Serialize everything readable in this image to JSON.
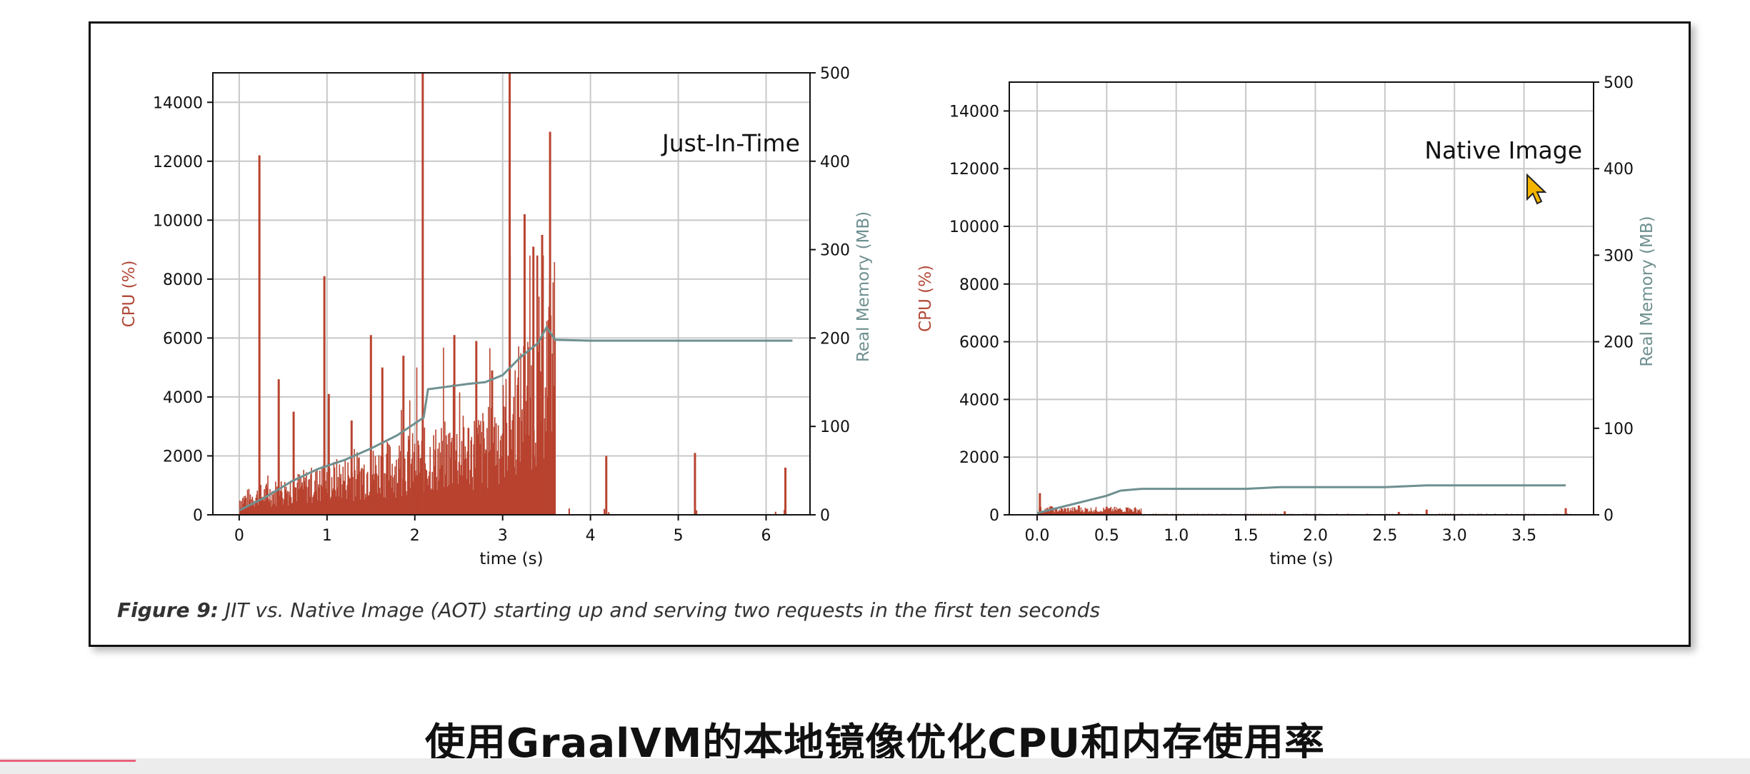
{
  "chart_data": [
    {
      "type": "bar",
      "title": "Just-In-Time",
      "xlabel": "time (s)",
      "ylabel": "CPU (%)",
      "ylabel_right": "Real Memory (MB)",
      "xlim": [
        -0.3,
        6.5
      ],
      "ylim": [
        0,
        15000
      ],
      "ylim_right": [
        0,
        500
      ],
      "xticks": [
        0,
        1,
        2,
        3,
        4,
        5,
        6
      ],
      "yticks": [
        0,
        2000,
        4000,
        6000,
        8000,
        10000,
        12000,
        14000
      ],
      "yticks_right": [
        0,
        100,
        200,
        300,
        400,
        500
      ],
      "grid": true,
      "colors": {
        "cpu": "#b8432f",
        "memory": "#6f9090"
      },
      "spikes": [
        {
          "x": 0.23,
          "y": 12200
        },
        {
          "x": 0.45,
          "y": 4600
        },
        {
          "x": 0.62,
          "y": 3500
        },
        {
          "x": 0.97,
          "y": 8100
        },
        {
          "x": 1.02,
          "y": 4100
        },
        {
          "x": 1.28,
          "y": 3200
        },
        {
          "x": 1.5,
          "y": 6100
        },
        {
          "x": 1.63,
          "y": 5000
        },
        {
          "x": 1.87,
          "y": 5400
        },
        {
          "x": 2.09,
          "y": 15000
        },
        {
          "x": 2.45,
          "y": 6100
        },
        {
          "x": 2.7,
          "y": 5900
        },
        {
          "x": 2.88,
          "y": 4900
        },
        {
          "x": 3.08,
          "y": 15000
        },
        {
          "x": 3.25,
          "y": 10200
        },
        {
          "x": 3.35,
          "y": 9100
        },
        {
          "x": 3.45,
          "y": 9500
        },
        {
          "x": 3.54,
          "y": 13000
        },
        {
          "x": 4.18,
          "y": 2000
        },
        {
          "x": 5.19,
          "y": 2100
        },
        {
          "x": 6.22,
          "y": 1600
        }
      ],
      "memory_series": {
        "x": [
          0,
          0.3,
          0.6,
          0.9,
          1.2,
          1.5,
          1.8,
          2.1,
          2.15,
          2.6,
          2.8,
          3.0,
          3.2,
          3.4,
          3.5,
          3.6,
          4.0,
          6.3
        ],
        "y": [
          5,
          20,
          38,
          52,
          62,
          75,
          90,
          110,
          142,
          148,
          150,
          158,
          178,
          194,
          212,
          198,
          197,
          197
        ]
      }
    },
    {
      "type": "bar",
      "title": "Native Image",
      "xlabel": "time (s)",
      "ylabel": "CPU (%)",
      "ylabel_right": "Real Memory (MB)",
      "xlim": [
        -0.2,
        4.0
      ],
      "ylim": [
        0,
        15000
      ],
      "ylim_right": [
        0,
        500
      ],
      "xticks": [
        0.0,
        0.5,
        1.0,
        1.5,
        2.0,
        2.5,
        3.0,
        3.5
      ],
      "xtick_labels": [
        "0.0",
        "0.5",
        "1.0",
        "1.5",
        "2.0",
        "2.5",
        "3.0",
        "3.5"
      ],
      "yticks": [
        0,
        2000,
        4000,
        6000,
        8000,
        10000,
        12000,
        14000
      ],
      "yticks_right": [
        0,
        100,
        200,
        300,
        400,
        500
      ],
      "grid": true,
      "colors": {
        "cpu": "#b8432f",
        "memory": "#6f9090"
      },
      "spikes": [
        {
          "x": 0.02,
          "y": 750
        },
        {
          "x": 0.1,
          "y": 300
        },
        {
          "x": 0.3,
          "y": 320
        },
        {
          "x": 0.5,
          "y": 280
        },
        {
          "x": 0.65,
          "y": 250
        },
        {
          "x": 1.78,
          "y": 120
        },
        {
          "x": 2.6,
          "y": 100
        },
        {
          "x": 2.8,
          "y": 180
        },
        {
          "x": 3.8,
          "y": 230
        }
      ],
      "memory_series": {
        "x": [
          0,
          0.1,
          0.3,
          0.5,
          0.6,
          0.75,
          1.0,
          1.5,
          1.75,
          2.5,
          2.8,
          3.5,
          3.8
        ],
        "y": [
          2,
          6,
          14,
          22,
          28,
          30,
          30,
          30,
          32,
          32,
          34,
          34,
          34
        ]
      }
    }
  ],
  "caption": {
    "label": "Figure 9:",
    "text": " JIT vs. Native Image (AOT) starting up and serving two requests in the first ten seconds"
  },
  "subtitle": "使用GraalVM的本地镜像优化CPU和内存使用率",
  "cursor_icon": "mouse-pointer-icon"
}
